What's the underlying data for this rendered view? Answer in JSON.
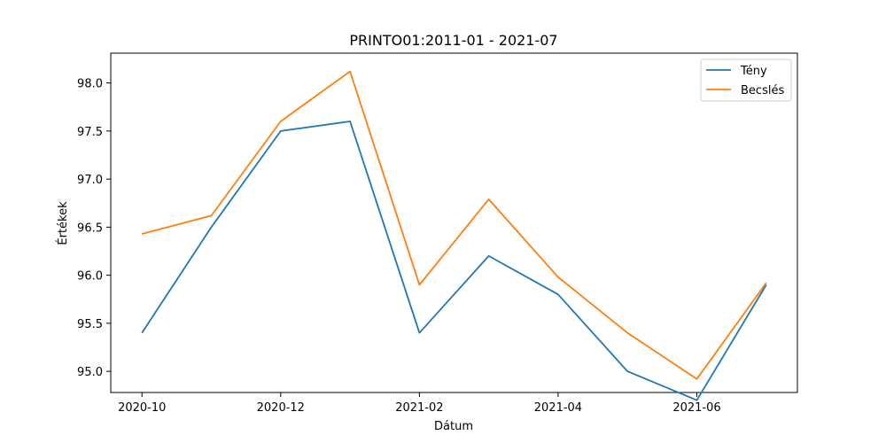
{
  "chart_data": {
    "type": "line",
    "title": "PRINTO01:2011-01 - 2021-07",
    "xlabel": "Dátum",
    "ylabel": "Értékek",
    "x": [
      "2020-10",
      "2020-11",
      "2020-12",
      "2021-01",
      "2021-02",
      "2021-03",
      "2021-04",
      "2021-05",
      "2021-06",
      "2021-07"
    ],
    "x_tick_labels": [
      "2020-10",
      "2020-12",
      "2021-02",
      "2021-04",
      "2021-06"
    ],
    "y_tick_labels": [
      "95.0",
      "95.5",
      "96.0",
      "96.5",
      "97.0",
      "97.5",
      "98.0"
    ],
    "ylim": [
      94.78,
      98.31
    ],
    "grid": false,
    "legend_position": "top-right",
    "series": [
      {
        "name": "Tény",
        "color": "#1f77b4",
        "values": [
          95.4,
          96.5,
          97.5,
          97.6,
          95.4,
          96.2,
          95.8,
          95.0,
          94.7,
          95.9
        ]
      },
      {
        "name": "Becslés",
        "color": "#ff7f0e",
        "values": [
          96.43,
          96.62,
          97.6,
          98.12,
          95.9,
          96.79,
          95.98,
          95.4,
          94.92,
          95.92
        ]
      }
    ]
  }
}
